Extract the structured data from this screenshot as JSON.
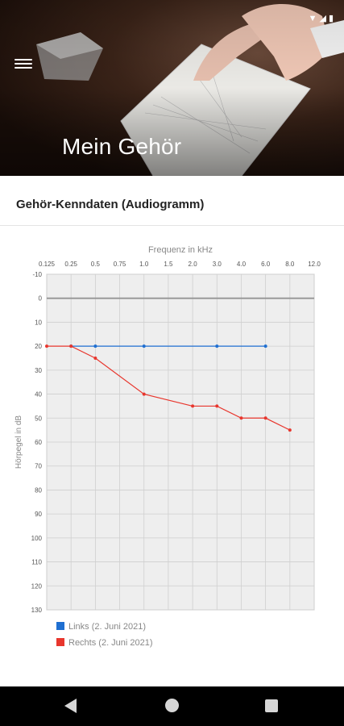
{
  "header": {
    "title": "Mein Gehör",
    "menu_icon": "hamburger-menu-icon"
  },
  "status_bar": {
    "icons": [
      "wifi-icon",
      "signal-icon",
      "battery-icon"
    ]
  },
  "section": {
    "title": "Gehör-Kenndaten (Audiogramm)"
  },
  "chart_data": {
    "type": "line",
    "title": "",
    "xlabel": "Frequenz in kHz",
    "ylabel": "Hörpegel in dB",
    "x_tick_labels": [
      "0.125",
      "0.25",
      "0.5",
      "0.75",
      "1.0",
      "1.5",
      "2.0",
      "3.0",
      "4.0",
      "6.0",
      "8.0",
      "12.0"
    ],
    "y_ticks": [
      -10,
      0,
      10,
      20,
      30,
      40,
      50,
      60,
      70,
      80,
      90,
      100,
      110,
      120,
      130
    ],
    "ylim": [
      -10,
      130
    ],
    "y_inverted": true,
    "grid": true,
    "colors": {
      "links": "#1f6fd1",
      "rechts": "#e8362d",
      "zero_line": "#999999",
      "grid": "#cfcfcf",
      "plot_bg": "#eeeeee"
    },
    "series": [
      {
        "name": "Links (2. Juni 2021)",
        "x": [
          "0.25",
          "0.5",
          "1.0",
          "3.0",
          "6.0"
        ],
        "values": [
          20,
          20,
          20,
          20,
          20
        ]
      },
      {
        "name": "Rechts (2. Juni 2021)",
        "x": [
          "0.125",
          "0.25",
          "0.5",
          "1.0",
          "2.0",
          "3.0",
          "4.0",
          "6.0",
          "8.0"
        ],
        "values": [
          20,
          20,
          25,
          40,
          45,
          45,
          50,
          50,
          55
        ]
      }
    ],
    "legend_position": "bottom-left"
  },
  "nav": {
    "back_icon": "back-triangle-icon",
    "home_icon": "home-circle-icon",
    "recents_icon": "recents-square-icon"
  }
}
